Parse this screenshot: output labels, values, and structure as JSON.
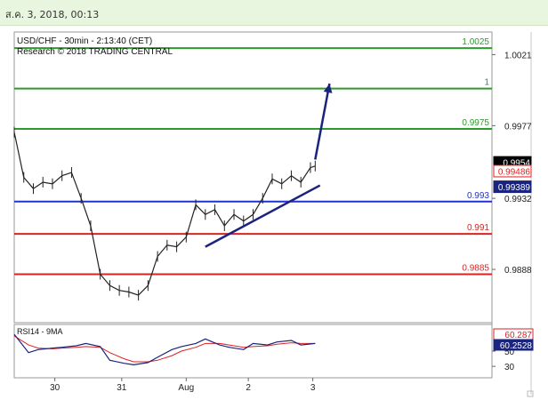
{
  "header": {
    "datetime": "ส.ค. 3, 2018, 00:13"
  },
  "chart_data": {
    "type": "line",
    "title": "USD/CHF - 30min - 2:13:40 (CET)",
    "subtitle": "Research © 2018 TRADING CENTRAL",
    "price_axis": {
      "ylim": [
        0.9855,
        1.0035
      ],
      "tick_labels": [
        "1.0021",
        "0.9977",
        "0.9932",
        "0.9888"
      ],
      "tick_values": [
        1.0021,
        0.9977,
        0.9932,
        0.9888
      ]
    },
    "x_tick_labels": [
      "30",
      "31",
      "Aug",
      "2",
      "3"
    ],
    "x_tick_positions": [
      0.085,
      0.225,
      0.36,
      0.49,
      0.625
    ],
    "levels": [
      {
        "label": "1.0025",
        "value": 1.0025,
        "color": "#2e9a2e"
      },
      {
        "label": "1",
        "value": 1.0,
        "color": "#2e9a2e"
      },
      {
        "label": "0.9975",
        "value": 0.9975,
        "color": "#2e9a2e"
      },
      {
        "label": "0.993",
        "value": 0.993,
        "color": "#2233cc"
      },
      {
        "label": "0.991",
        "value": 0.991,
        "color": "#dd2222"
      },
      {
        "label": "0.9885",
        "value": 0.9885,
        "color": "#dd2222"
      }
    ],
    "price_labels": [
      {
        "label": "0.9954",
        "value": 0.9954,
        "bg": "#000000",
        "fg": "#ffffff"
      },
      {
        "label": "0.99486",
        "value": 0.99486,
        "bg": "#ffffff",
        "fg": "#dd2222"
      },
      {
        "label": "0.99389",
        "value": 0.99389,
        "bg": "#1a237e",
        "fg": "#ffffff"
      }
    ],
    "price_series": {
      "x": [
        0.0,
        0.02,
        0.04,
        0.06,
        0.08,
        0.1,
        0.12,
        0.14,
        0.16,
        0.18,
        0.2,
        0.22,
        0.24,
        0.26,
        0.28,
        0.3,
        0.32,
        0.34,
        0.36,
        0.38,
        0.4,
        0.42,
        0.44,
        0.46,
        0.48,
        0.5,
        0.52,
        0.54,
        0.56,
        0.58,
        0.6,
        0.62,
        0.63
      ],
      "close": [
        0.9973,
        0.9945,
        0.9938,
        0.9942,
        0.9941,
        0.9946,
        0.9948,
        0.9932,
        0.9915,
        0.9885,
        0.9878,
        0.9875,
        0.9874,
        0.9872,
        0.9878,
        0.9896,
        0.9903,
        0.9902,
        0.9908,
        0.9928,
        0.9922,
        0.9925,
        0.9915,
        0.9922,
        0.9918,
        0.9922,
        0.9932,
        0.9944,
        0.9941,
        0.9946,
        0.9942,
        0.9951,
        0.9952
      ]
    },
    "projection": {
      "x": [
        0.63,
        0.66
      ],
      "y": [
        0.9956,
        1.0003
      ]
    },
    "trendline": {
      "x": [
        0.4,
        0.64
      ],
      "y": [
        0.9902,
        0.994
      ]
    },
    "rsi": {
      "label": "RSI14 - 9MA",
      "tick_labels": [
        "50",
        "30"
      ],
      "tick_values": [
        50,
        30
      ],
      "ylim": [
        15,
        85
      ],
      "value_labels": [
        {
          "label": "60.287",
          "value": 60.287,
          "bg": "#ffffff",
          "fg": "#dd2222"
        },
        {
          "label": "60.2528",
          "value": 60.2528,
          "bg": "#1a237e",
          "fg": "#ffffff"
        }
      ],
      "x": [
        0.0,
        0.03,
        0.05,
        0.08,
        0.1,
        0.13,
        0.15,
        0.18,
        0.2,
        0.23,
        0.25,
        0.28,
        0.3,
        0.33,
        0.35,
        0.38,
        0.4,
        0.43,
        0.45,
        0.48,
        0.5,
        0.53,
        0.55,
        0.58,
        0.6,
        0.63
      ],
      "rsi": [
        72,
        48,
        52,
        54,
        55,
        57,
        60,
        56,
        38,
        34,
        32,
        35,
        42,
        52,
        56,
        60,
        66,
        58,
        55,
        52,
        60,
        58,
        62,
        64,
        58,
        60
      ],
      "ma": [
        70,
        58,
        54,
        53,
        54,
        55,
        56,
        55,
        48,
        40,
        36,
        36,
        38,
        44,
        50,
        55,
        60,
        60,
        58,
        55,
        56,
        57,
        59,
        61,
        60,
        60
      ]
    }
  }
}
